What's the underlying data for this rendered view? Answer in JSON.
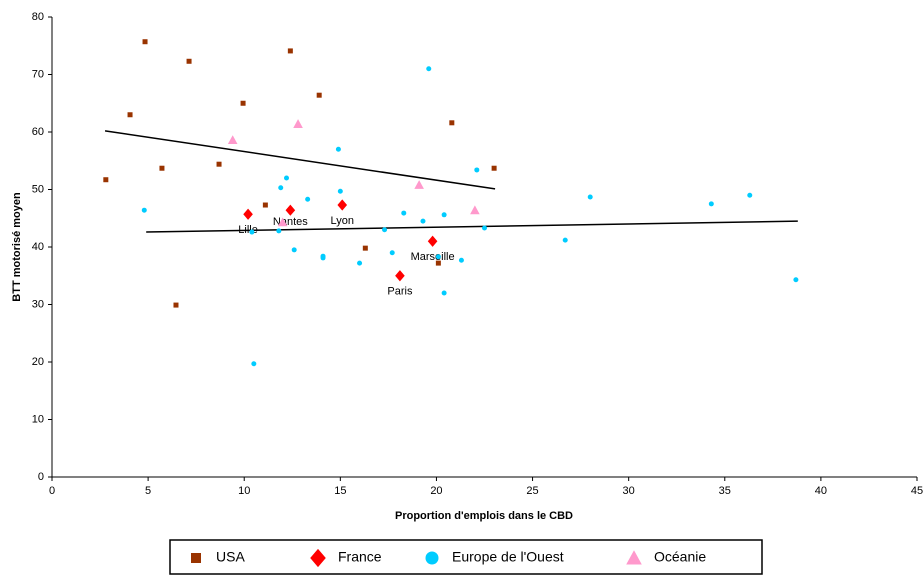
{
  "chart_data": {
    "type": "scatter",
    "xlabel": "Proportion d'emplois dans le CBD",
    "ylabel": "BTT motorisé moyen",
    "xlim": [
      0,
      45
    ],
    "xticks": [
      0,
      5,
      10,
      15,
      20,
      25,
      30,
      35,
      40,
      45
    ],
    "ylim": [
      0,
      80
    ],
    "yticks": [
      0,
      10,
      20,
      30,
      40,
      50,
      60,
      70,
      80
    ],
    "grid": false,
    "legend": "bottom",
    "series": [
      {
        "name": "USA",
        "color": "#993300",
        "marker": "square",
        "x": [
          2.8,
          4.06,
          4.84,
          5.72,
          6.45,
          7.13,
          8.69,
          9.94,
          11.1,
          12.4,
          13.9,
          16.3,
          20.1,
          20.8,
          23.0
        ],
        "values": [
          51.7,
          63.0,
          75.7,
          53.7,
          29.9,
          72.3,
          54.4,
          65.0,
          47.3,
          74.1,
          66.4,
          39.8,
          37.2,
          61.6,
          53.7
        ]
      },
      {
        "name": "France",
        "color": "#ff0000",
        "marker": "diamond",
        "x": [
          10.2,
          12.4,
          15.1,
          18.1,
          19.8
        ],
        "values": [
          45.7,
          46.4,
          47.3,
          35.0,
          41.0
        ],
        "labels": [
          "Lille",
          "Nantes",
          "Lyon",
          "Paris",
          "Marseille"
        ]
      },
      {
        "name": "Europe de l'Ouest",
        "color": "#00ccff",
        "marker": "circle",
        "x": [
          4.8,
          10.5,
          10.4,
          11.8,
          11.9,
          12.2,
          12.6,
          13.3,
          14.1,
          14.1,
          15.0,
          14.9,
          16.0,
          17.3,
          17.7,
          18.3,
          19.3,
          19.6,
          20.1,
          20.4,
          20.4,
          21.3,
          22.1,
          22.5,
          26.7,
          28.0,
          34.3,
          36.3,
          38.7
        ],
        "values": [
          46.4,
          19.7,
          42.6,
          42.8,
          50.3,
          52.0,
          39.5,
          48.3,
          38.4,
          38.1,
          49.7,
          57.0,
          37.2,
          43.0,
          39.0,
          45.9,
          44.5,
          71.0,
          38.3,
          45.6,
          32.0,
          37.7,
          53.4,
          43.3,
          41.2,
          48.7,
          47.5,
          49.0,
          34.3
        ]
      },
      {
        "name": "Océanie",
        "color": "#ff99cc",
        "marker": "triangle",
        "x": [
          9.4,
          12.0,
          12.8,
          19.1,
          22.0
        ],
        "values": [
          58.6,
          44.3,
          61.4,
          50.8,
          46.4
        ]
      }
    ],
    "trendlines": [
      {
        "color": "#000000",
        "x": [
          2.76,
          23.05
        ],
        "y": [
          60.2,
          50.1
        ]
      },
      {
        "color": "#000000",
        "x": [
          4.9,
          38.8
        ],
        "y": [
          42.6,
          44.5
        ]
      }
    ]
  }
}
